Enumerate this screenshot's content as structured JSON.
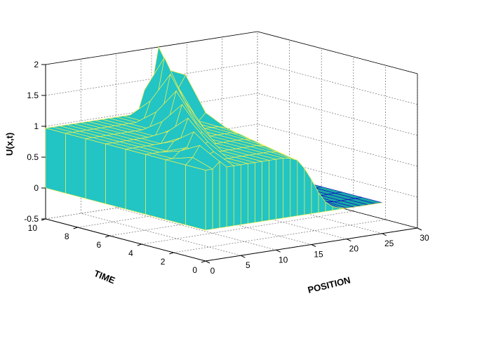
{
  "chart_data": {
    "type": "surface3d",
    "title": "",
    "xlabel": "POSITION",
    "ylabel": "TIME",
    "zlabel": "U(x,t)",
    "xlim": [
      0,
      30
    ],
    "ylim": [
      0,
      10
    ],
    "zlim": [
      -0.5,
      2
    ],
    "x_ticks": [
      "0",
      "5",
      "10",
      "15",
      "20",
      "25",
      "30"
    ],
    "y_ticks": [
      "0",
      "2",
      "4",
      "6",
      "8",
      "10"
    ],
    "z_ticks": [
      "-0.5",
      "0",
      "0.5",
      "1",
      "1.5",
      "2"
    ],
    "grid": true,
    "box_floor": -0.5,
    "surface": {
      "x_start": 0,
      "x_step": 1,
      "x_count": 26,
      "t_values": [
        0,
        1.25,
        2.5,
        3.75,
        5,
        6.25,
        7.5,
        8.75,
        10
      ],
      "front_values": [
        0.97,
        0.97,
        0.97,
        0.97,
        0.97,
        0.97,
        0.97,
        0.97,
        0.97,
        0.97,
        0.97,
        0.97,
        0.95,
        0.9,
        0.75,
        0.55,
        0.32,
        0.15,
        0.06,
        0.02,
        0.0,
        0.0,
        0.0,
        0.0,
        0.0,
        0.0
      ],
      "shock_peaks": [
        {
          "position": 2,
          "time": 1.25,
          "value": 1.25
        },
        {
          "position": 4,
          "time": 2.5,
          "value": 1.35
        },
        {
          "position": 6,
          "time": 3.75,
          "value": 1.45
        },
        {
          "position": 8,
          "time": 5,
          "value": 1.55
        },
        {
          "position": 10,
          "time": 6.25,
          "value": 1.65
        },
        {
          "position": 12,
          "time": 7.5,
          "value": 1.8
        },
        {
          "position": 14,
          "time": 8.75,
          "value": 1.95
        },
        {
          "position": 16,
          "time": 10,
          "value": 2.0
        },
        {
          "position": 17,
          "time": 9.2,
          "value": 1.8
        }
      ]
    },
    "colors": {
      "surface": "#22c4c4",
      "surface_dark": "#1aa8a8",
      "wire_light": "#f0f050",
      "wire_dark": "#1010c0",
      "grid": "#808080"
    }
  }
}
